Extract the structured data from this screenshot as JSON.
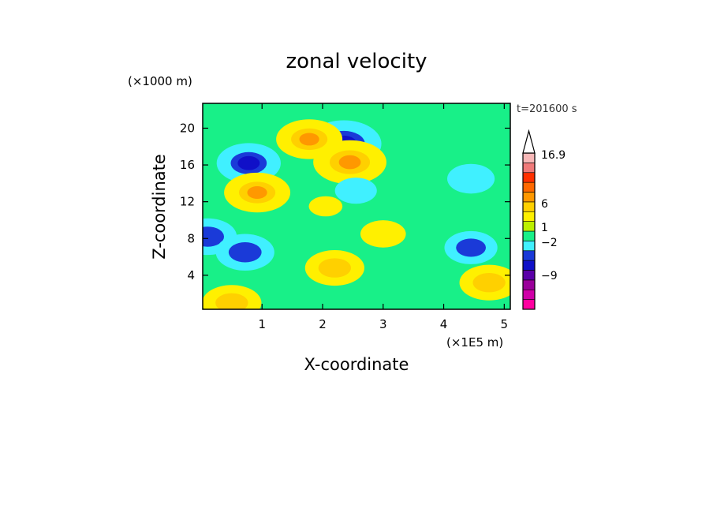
{
  "chart_data": {
    "type": "heatmap",
    "title": "zonal velocity",
    "xlabel": "X-coordinate",
    "ylabel": "Z-coordinate",
    "x_unit": "(×1E5 m)",
    "y_unit": "(×1000 m)",
    "time_label": "t=201600 s",
    "xlim": [
      0.02,
      5.1
    ],
    "ylim": [
      0.3,
      22.7
    ],
    "x_ticks": [
      1,
      2,
      3,
      4,
      5
    ],
    "y_ticks": [
      4,
      8,
      12,
      16,
      20
    ],
    "grid": false,
    "colorbar": {
      "labels": [
        "16.9",
        "6",
        "1",
        "−2",
        "−9"
      ],
      "colors": [
        "#ff00a0",
        "#d000a8",
        "#9a009a",
        "#5a00a8",
        "#1010c8",
        "#1a3ad8",
        "#40f0ff",
        "#18f088",
        "#bcf000",
        "#fff000",
        "#ffd000",
        "#ff9800",
        "#ff6800",
        "#ff3000",
        "#f07a7a",
        "#f8b8b8"
      ],
      "top_arrow": true
    },
    "field_features": [
      {
        "x": 2.35,
        "z": 18.3,
        "value": -9
      },
      {
        "x": 0.78,
        "z": 16.2,
        "value": -7
      },
      {
        "x": 0.1,
        "z": 8.2,
        "value": -6
      },
      {
        "x": 0.72,
        "z": 6.5,
        "value": -6
      },
      {
        "x": 4.45,
        "z": 7.0,
        "value": -5
      },
      {
        "x": 4.45,
        "z": 14.5,
        "value": -4
      },
      {
        "x": 2.05,
        "z": 11.5,
        "value": 0.3
      },
      {
        "x": 2.45,
        "z": 16.3,
        "value": 6
      },
      {
        "x": 0.92,
        "z": 13.0,
        "value": 5
      },
      {
        "x": 1.78,
        "z": 18.8,
        "value": 5
      },
      {
        "x": 2.55,
        "z": 13.2,
        "value": -3
      },
      {
        "x": 3.0,
        "z": 8.5,
        "value": 2
      },
      {
        "x": 0.5,
        "z": 1.0,
        "value": 4
      },
      {
        "x": 2.2,
        "z": 4.8,
        "value": 4
      },
      {
        "x": 4.75,
        "z": 3.2,
        "value": 4
      }
    ]
  }
}
